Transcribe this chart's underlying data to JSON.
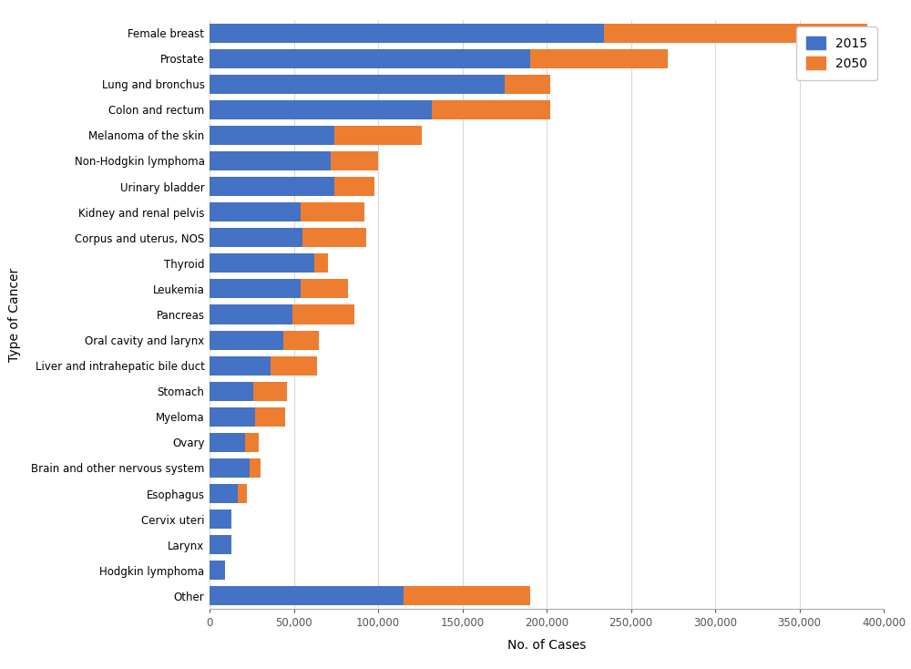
{
  "categories": [
    "Female breast",
    "Prostate",
    "Lung and bronchus",
    "Colon and rectum",
    "Melanoma of the skin",
    "Non-Hodgkin lymphoma",
    "Urinary bladder",
    "Kidney and renal pelvis",
    "Corpus and uterus, NOS",
    "Thyroid",
    "Leukemia",
    "Pancreas",
    "Oral cavity and larynx",
    "Liver and intrahepatic bile duct",
    "Stomach",
    "Myeloma",
    "Ovary",
    "Brain and other nervous system",
    "Esophagus",
    "Cervix uteri",
    "Larynx",
    "Hodgkin lymphoma",
    "Other"
  ],
  "values_2015": [
    234000,
    190000,
    175000,
    132000,
    74000,
    72000,
    74000,
    54000,
    55000,
    62000,
    54000,
    49000,
    44000,
    36000,
    26000,
    27000,
    21000,
    24000,
    17000,
    13000,
    13000,
    9000,
    115000
  ],
  "values_2050": [
    156000,
    82000,
    27000,
    70000,
    52000,
    28000,
    24000,
    38000,
    38000,
    8000,
    28000,
    37000,
    21000,
    28000,
    20000,
    18000,
    8000,
    6000,
    5000,
    0,
    0,
    0,
    75000
  ],
  "color_2015": "#4472C4",
  "color_2050": "#ED7D31",
  "xlabel": "No. of Cases",
  "ylabel": "Type of Cancer",
  "legend_labels": [
    "2015",
    "2050"
  ],
  "xlim": [
    0,
    400000
  ],
  "xticks": [
    0,
    50000,
    100000,
    150000,
    200000,
    250000,
    300000,
    350000,
    400000
  ],
  "xtick_labels": [
    "0",
    "50,000",
    "100,000",
    "150,000",
    "200,000",
    "250,000",
    "300,000",
    "350,000",
    "400,000"
  ],
  "background_color": "#ffffff",
  "grid_color": "#d9d9d9",
  "bar_height": 0.75,
  "figsize": [
    10.0,
    7.34
  ],
  "dpi": 100
}
